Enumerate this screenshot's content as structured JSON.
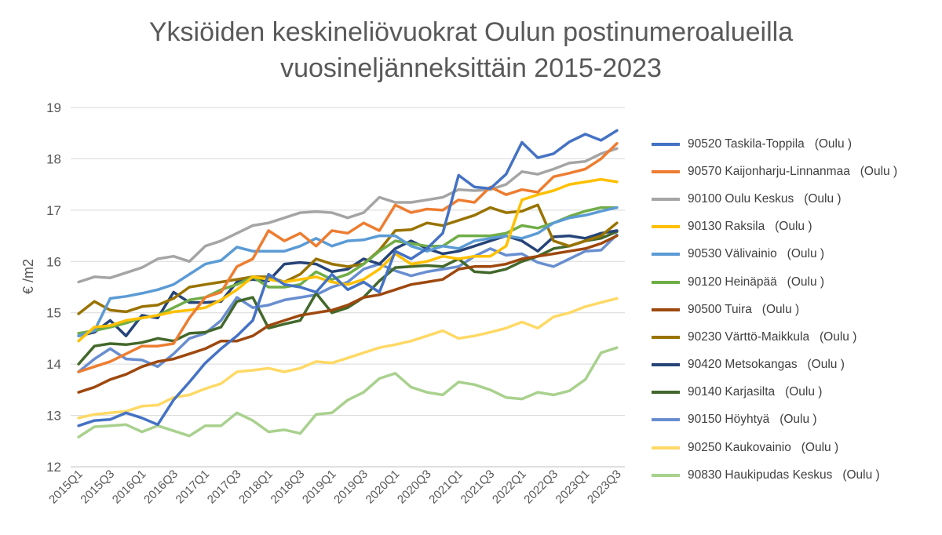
{
  "chart_data": {
    "type": "line",
    "title": "Yksiöiden keskineliövuokrat Oulun postinumeroalueilla",
    "subtitle": "vuosineljänneksittäin 2015-2023",
    "ylabel": "€ /m2",
    "xlabel": "",
    "ylim": [
      12,
      19
    ],
    "yticks": [
      "12",
      "13",
      "14",
      "15",
      "16",
      "17",
      "18",
      "19"
    ],
    "grid": "horizontal",
    "legend_position": "right",
    "x": [
      "2015Q1",
      "2015Q2",
      "2015Q3",
      "2015Q4",
      "2016Q1",
      "2016Q2",
      "2016Q3",
      "2016Q4",
      "2017Q1",
      "2017Q2",
      "2017Q3",
      "2017Q4",
      "2018Q1",
      "2018Q2",
      "2018Q3",
      "2018Q4",
      "2019Q1",
      "2019Q2",
      "2019Q3",
      "2019Q4",
      "2020Q1",
      "2020Q2",
      "2020Q3",
      "2020Q4",
      "2021Q1",
      "2021Q2",
      "2021Q3",
      "2021Q4",
      "2022Q1",
      "2022Q2",
      "2022Q3",
      "2022Q4",
      "2023Q1",
      "2023Q2",
      "2023Q3"
    ],
    "xtick_labels": [
      "2015Q1",
      "2015Q3",
      "2016Q1",
      "2016Q3",
      "2017Q1",
      "2017Q3",
      "2018Q1",
      "2018Q3",
      "2019Q1",
      "2019Q3",
      "2020Q1",
      "2020Q3",
      "2021Q1",
      "2021Q3",
      "2022Q1",
      "2022Q3",
      "2023Q1",
      "2023Q3"
    ],
    "series": [
      {
        "name": "90520 Taskila-Toppila   (Oulu )",
        "color": "#4472c4",
        "values": [
          12.8,
          12.9,
          12.92,
          13.05,
          12.95,
          12.82,
          13.3,
          13.65,
          14.02,
          14.3,
          14.55,
          14.85,
          15.75,
          15.55,
          15.5,
          15.4,
          15.75,
          15.45,
          15.6,
          15.4,
          16.2,
          16.05,
          16.25,
          16.55,
          17.68,
          17.45,
          17.42,
          17.7,
          18.32,
          18.02,
          18.1,
          18.33,
          18.48,
          18.36,
          18.55
        ]
      },
      {
        "name": "90570 Kaijonharju-Linnanmaa   (Oulu )",
        "color": "#ed7d31",
        "values": [
          13.85,
          13.95,
          14.05,
          14.2,
          14.35,
          14.35,
          14.4,
          14.9,
          15.3,
          15.4,
          15.9,
          16.05,
          16.6,
          16.4,
          16.55,
          16.3,
          16.6,
          16.55,
          16.75,
          16.6,
          17.1,
          16.95,
          17.02,
          17.0,
          17.2,
          17.15,
          17.45,
          17.3,
          17.4,
          17.35,
          17.65,
          17.72,
          17.8,
          18.0,
          18.3
        ]
      },
      {
        "name": "90100 Oulu Keskus   (Oulu )",
        "color": "#a5a5a5",
        "values": [
          15.6,
          15.7,
          15.68,
          15.78,
          15.88,
          16.05,
          16.1,
          16.0,
          16.3,
          16.4,
          16.55,
          16.7,
          16.75,
          16.85,
          16.95,
          16.97,
          16.95,
          16.85,
          16.95,
          17.25,
          17.15,
          17.15,
          17.2,
          17.25,
          17.4,
          17.38,
          17.4,
          17.5,
          17.75,
          17.7,
          17.8,
          17.92,
          17.95,
          18.1,
          18.2
        ]
      },
      {
        "name": "90130 Raksila   (Oulu )",
        "color": "#ffc000",
        "values": [
          14.45,
          14.72,
          14.75,
          14.85,
          14.9,
          14.95,
          15.02,
          15.05,
          15.1,
          15.25,
          15.45,
          15.7,
          15.65,
          15.6,
          15.65,
          15.7,
          15.6,
          15.55,
          15.65,
          15.85,
          16.15,
          15.95,
          16.0,
          16.1,
          16.05,
          16.1,
          16.1,
          16.3,
          17.2,
          17.3,
          17.38,
          17.5,
          17.55,
          17.6,
          17.55
        ]
      },
      {
        "name": "90530 Välivainio   (Oulu )",
        "color": "#5b9bd5",
        "values": [
          14.55,
          14.65,
          15.28,
          15.32,
          15.38,
          15.45,
          15.55,
          15.75,
          15.95,
          16.02,
          16.28,
          16.2,
          16.2,
          16.2,
          16.3,
          16.45,
          16.3,
          16.4,
          16.42,
          16.5,
          16.5,
          16.3,
          16.2,
          16.3,
          16.25,
          16.4,
          16.45,
          16.5,
          16.45,
          16.55,
          16.75,
          16.85,
          16.9,
          16.98,
          17.05
        ]
      },
      {
        "name": "90120 Heinäpää   (Oulu )",
        "color": "#70ad47",
        "values": [
          14.6,
          14.65,
          14.72,
          14.8,
          14.9,
          14.95,
          15.1,
          15.25,
          15.3,
          15.45,
          15.55,
          15.7,
          15.5,
          15.5,
          15.55,
          15.8,
          15.65,
          15.75,
          15.95,
          16.2,
          16.4,
          16.35,
          16.3,
          16.3,
          16.5,
          16.5,
          16.5,
          16.55,
          16.7,
          16.65,
          16.75,
          16.88,
          16.98,
          17.05,
          17.05
        ]
      },
      {
        "name": "90500 Tuira   (Oulu )",
        "color": "#9e480e",
        "values": [
          13.45,
          13.55,
          13.7,
          13.8,
          13.95,
          14.05,
          14.1,
          14.2,
          14.3,
          14.45,
          14.45,
          14.55,
          14.75,
          14.85,
          14.95,
          15.0,
          15.05,
          15.15,
          15.3,
          15.35,
          15.45,
          15.55,
          15.6,
          15.65,
          15.85,
          15.9,
          15.9,
          15.95,
          16.05,
          16.1,
          16.15,
          16.2,
          16.25,
          16.35,
          16.5
        ]
      },
      {
        "name": "90230 Värttö-Maikkula   (Oulu )",
        "color": "#997300",
        "values": [
          14.98,
          15.22,
          15.05,
          15.02,
          15.12,
          15.15,
          15.28,
          15.5,
          15.55,
          15.6,
          15.65,
          15.7,
          15.7,
          15.6,
          15.75,
          16.05,
          15.95,
          15.9,
          15.95,
          16.22,
          16.6,
          16.62,
          16.75,
          16.7,
          16.8,
          16.9,
          17.05,
          16.95,
          16.98,
          17.1,
          16.4,
          16.3,
          16.4,
          16.5,
          16.75
        ]
      },
      {
        "name": "90420 Metsokangas   (Oulu )",
        "color": "#264478",
        "values": [
          14.55,
          14.62,
          14.85,
          14.55,
          14.95,
          14.9,
          15.4,
          15.2,
          15.2,
          15.22,
          15.6,
          15.65,
          15.62,
          15.95,
          15.98,
          15.95,
          15.8,
          15.85,
          16.05,
          15.95,
          16.25,
          16.4,
          16.25,
          16.15,
          16.2,
          16.3,
          16.4,
          16.5,
          16.4,
          16.2,
          16.48,
          16.5,
          16.45,
          16.55,
          16.6
        ]
      },
      {
        "name": "90140 Karjasilta   (Oulu )",
        "color": "#43682b",
        "values": [
          14.0,
          14.35,
          14.4,
          14.38,
          14.42,
          14.5,
          14.45,
          14.6,
          14.62,
          14.72,
          15.22,
          15.3,
          14.7,
          14.78,
          14.85,
          15.38,
          15.0,
          15.1,
          15.3,
          15.62,
          15.88,
          15.9,
          15.92,
          15.9,
          16.05,
          15.8,
          15.78,
          15.85,
          16.0,
          16.1,
          16.25,
          16.3,
          16.4,
          16.45,
          16.58
        ]
      },
      {
        "name": "90150 Höyhtyä   (Oulu )",
        "color": "#698ed0",
        "values": [
          13.85,
          14.1,
          14.3,
          14.1,
          14.08,
          13.95,
          14.2,
          14.5,
          14.6,
          14.85,
          15.3,
          15.1,
          15.15,
          15.25,
          15.3,
          15.35,
          15.5,
          15.6,
          15.85,
          15.95,
          15.82,
          15.72,
          15.8,
          15.85,
          15.9,
          16.1,
          16.25,
          16.12,
          16.15,
          15.98,
          15.9,
          16.05,
          16.2,
          16.22,
          16.52
        ]
      },
      {
        "name": "90250 Kaukovainio   (Oulu )",
        "color": "#ffd966",
        "values": [
          12.95,
          13.02,
          13.05,
          13.08,
          13.18,
          13.2,
          13.35,
          13.4,
          13.52,
          13.62,
          13.85,
          13.88,
          13.92,
          13.85,
          13.92,
          14.05,
          14.02,
          14.12,
          14.22,
          14.32,
          14.38,
          14.45,
          14.55,
          14.65,
          14.5,
          14.55,
          14.62,
          14.7,
          14.82,
          14.7,
          14.92,
          15.0,
          15.12,
          15.2,
          15.28
        ]
      },
      {
        "name": "90830 Haukipudas Keskus   (Oulu )",
        "color": "#a9d18e",
        "values": [
          12.58,
          12.78,
          12.8,
          12.82,
          12.68,
          12.8,
          12.7,
          12.6,
          12.8,
          12.8,
          13.05,
          12.9,
          12.68,
          12.72,
          12.65,
          13.02,
          13.05,
          13.3,
          13.45,
          13.72,
          13.82,
          13.55,
          13.45,
          13.4,
          13.65,
          13.6,
          13.5,
          13.35,
          13.32,
          13.45,
          13.4,
          13.48,
          13.7,
          14.22,
          14.32
        ]
      }
    ]
  }
}
